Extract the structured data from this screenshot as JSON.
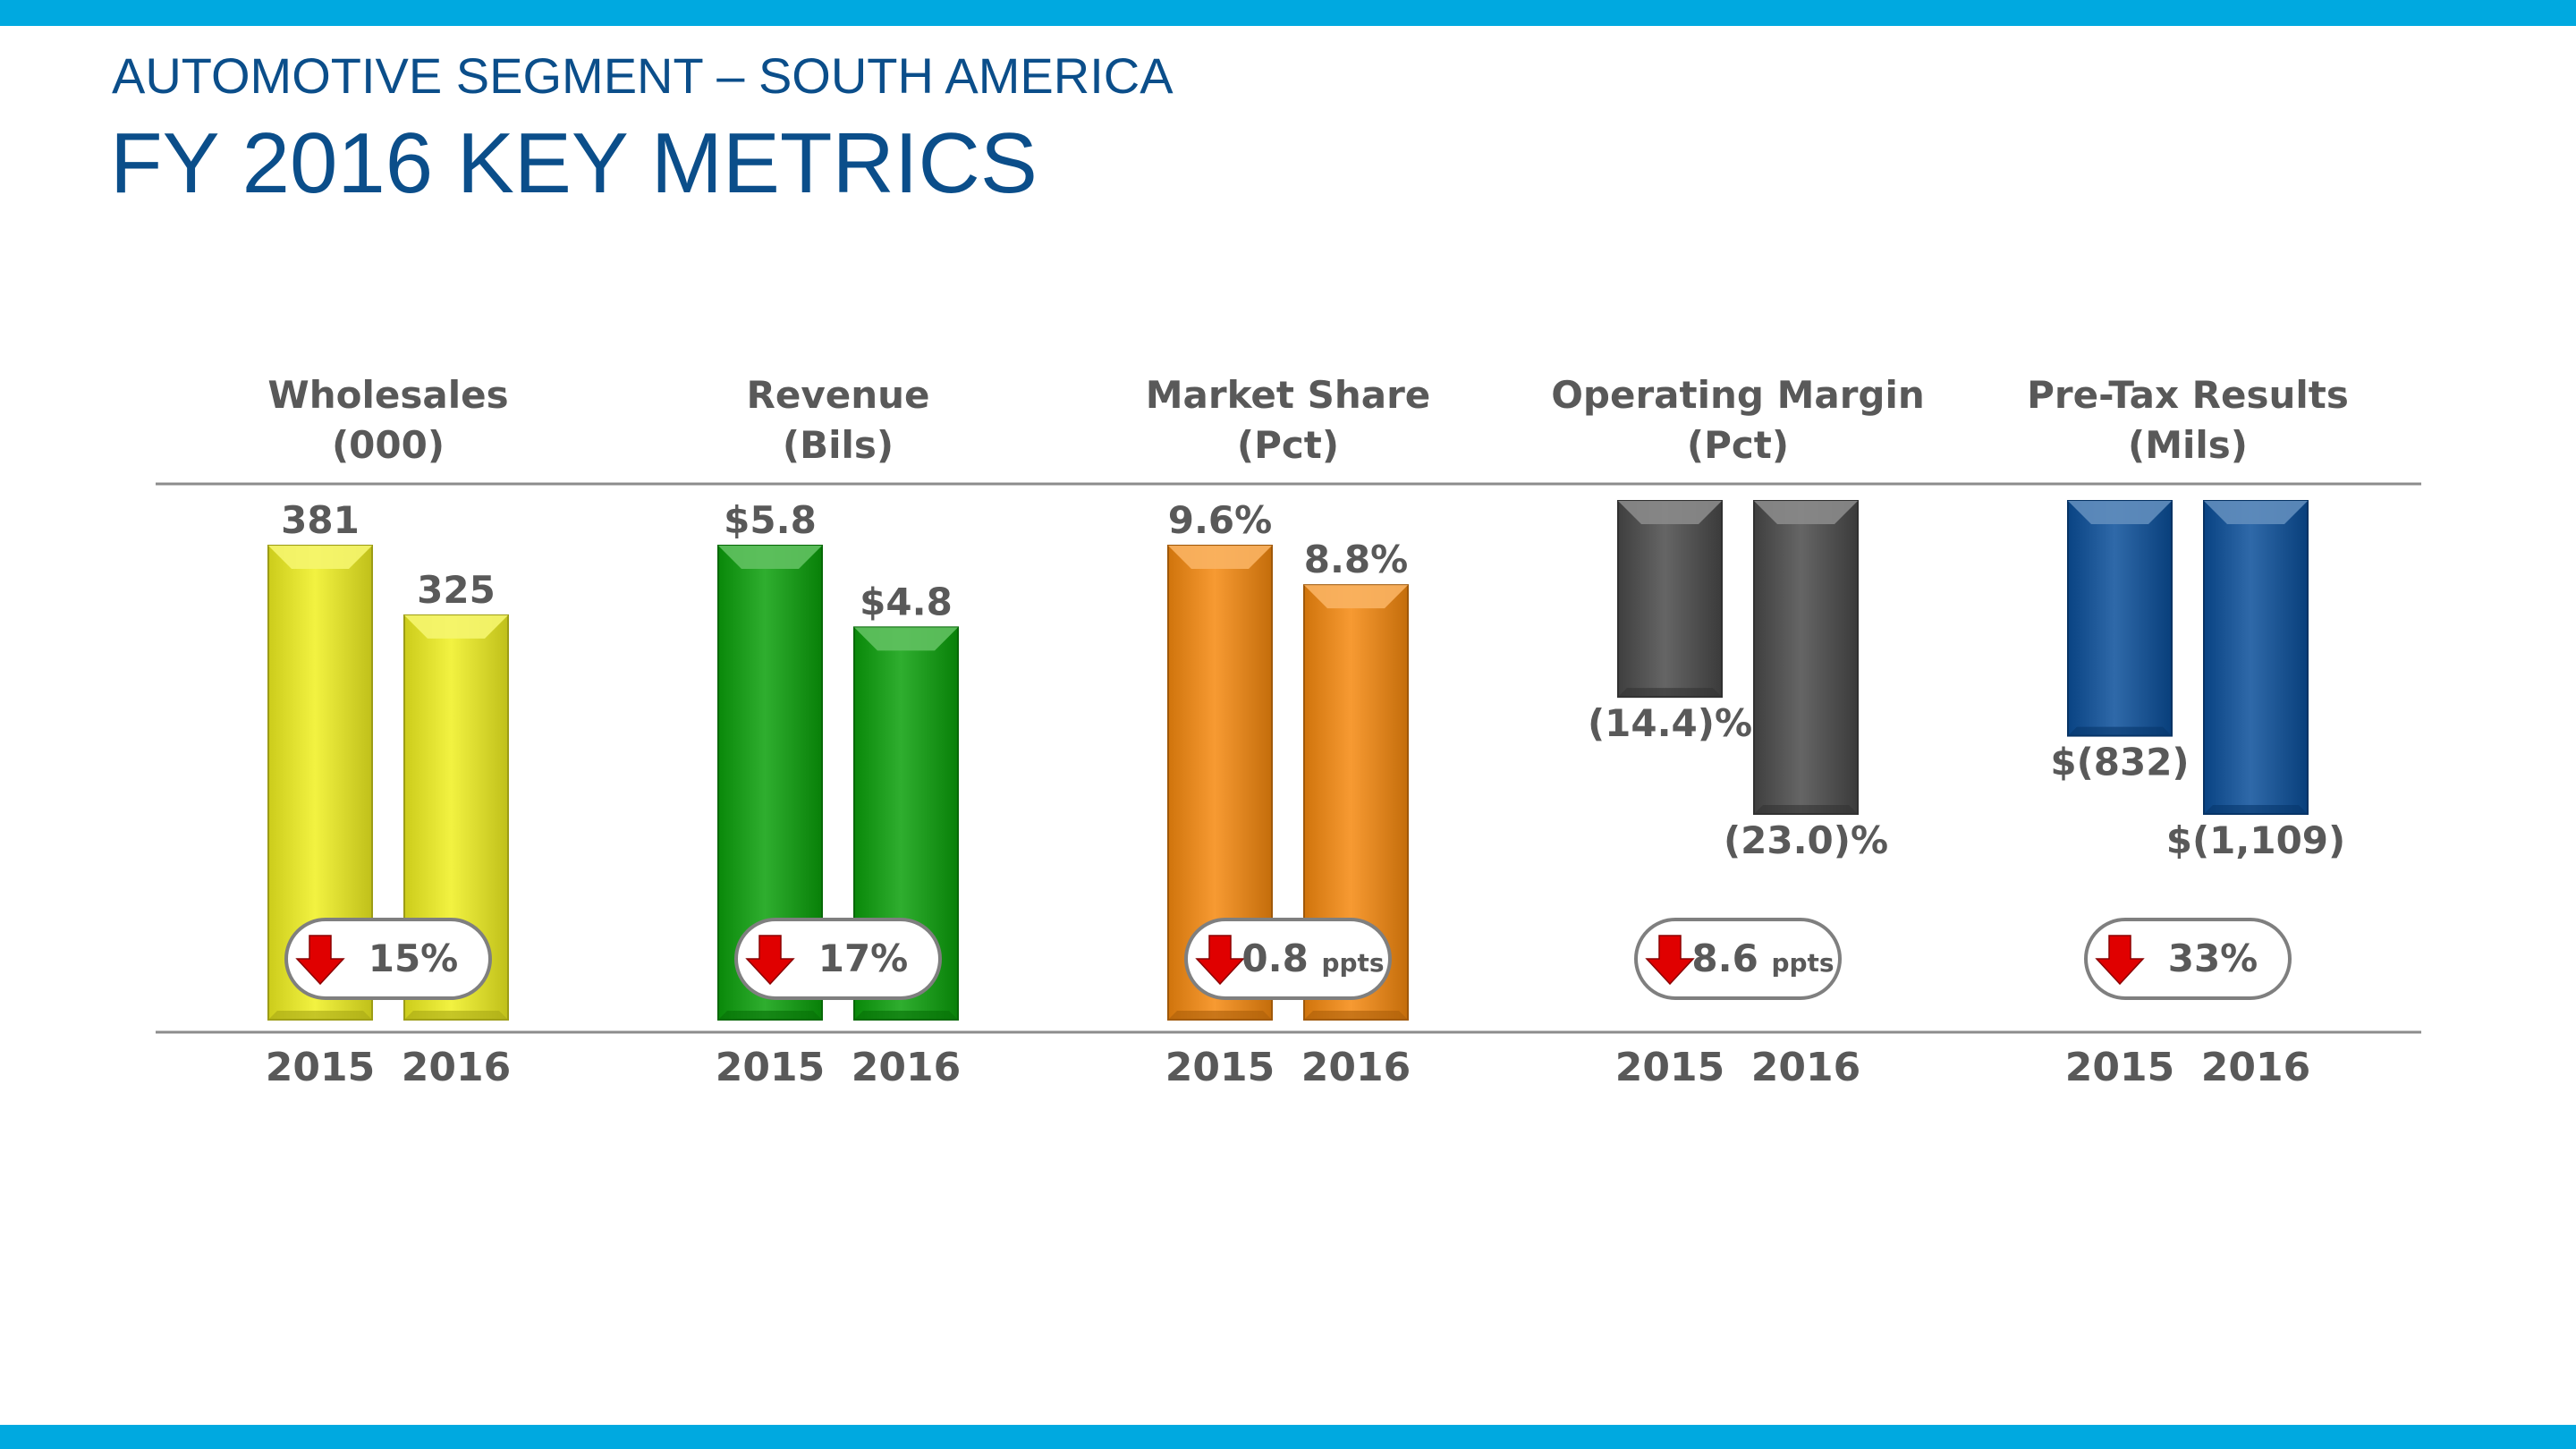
{
  "header": {
    "subtitle": "AUTOMOTIVE SEGMENT – SOUTH AMERICA",
    "title": "FY 2016 KEY METRICS"
  },
  "colors": {
    "bar": "#00a9e0",
    "title": "#0b4e8a",
    "text": "#595959",
    "arrow": "#e00000"
  },
  "chart_data": [
    {
      "type": "bar",
      "title": "Wholesales",
      "unit": "(000)",
      "categories": [
        "2015",
        "2016"
      ],
      "values": [
        381,
        325
      ],
      "labels": [
        "381",
        "325"
      ],
      "color": "#f0f020",
      "change": {
        "direction": "down",
        "value": "15",
        "suffix": "%"
      }
    },
    {
      "type": "bar",
      "title": "Revenue",
      "unit": "(Bils)",
      "categories": [
        "2015",
        "2016"
      ],
      "values": [
        5.8,
        4.8
      ],
      "labels": [
        "$5.8",
        "$4.8"
      ],
      "color": "#0aa00a",
      "change": {
        "direction": "down",
        "value": "17",
        "suffix": "%"
      }
    },
    {
      "type": "bar",
      "title": "Market Share",
      "unit": "(Pct)",
      "categories": [
        "2015",
        "2016"
      ],
      "values": [
        9.6,
        8.8
      ],
      "labels": [
        "9.6%",
        "8.8%"
      ],
      "color": "#f5880e",
      "change": {
        "direction": "down",
        "value": "0.8",
        "suffix": "ppts"
      }
    },
    {
      "type": "bar",
      "title": "Operating Margin",
      "unit": "(Pct)",
      "categories": [
        "2015",
        "2016"
      ],
      "values": [
        -14.4,
        -23.0
      ],
      "labels": [
        "(14.4)%",
        "(23.0)%"
      ],
      "color": "#4a4a4a",
      "change": {
        "direction": "down",
        "value": "8.6",
        "suffix": "ppts"
      }
    },
    {
      "type": "bar",
      "title": "Pre-Tax Results",
      "unit": "(Mils)",
      "categories": [
        "2015",
        "2016"
      ],
      "values": [
        -832,
        -1109
      ],
      "labels": [
        "$(832)",
        "$(1,109)"
      ],
      "color": "#0a4f9a",
      "change": {
        "direction": "down",
        "value": "33",
        "suffix": "%"
      }
    }
  ]
}
